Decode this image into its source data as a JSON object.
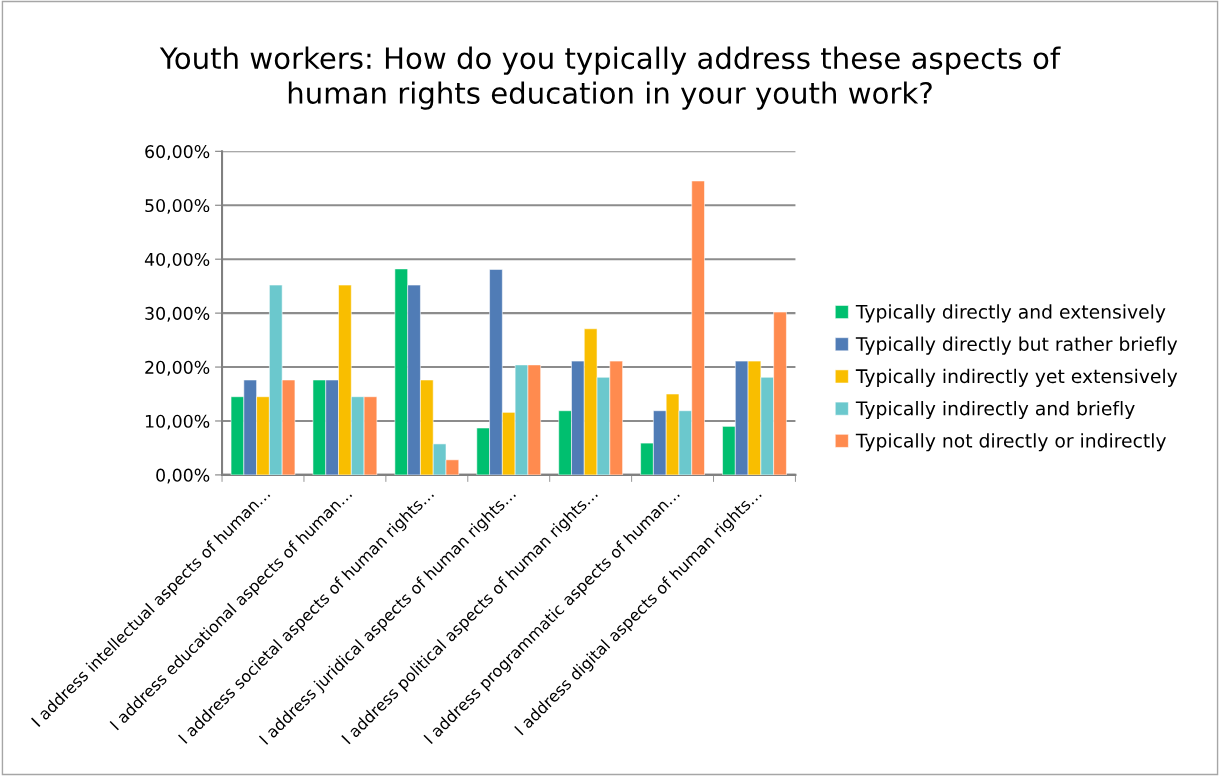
{
  "chart_data": {
    "type": "bar",
    "title": "Youth workers: How do you typically address these aspects of\nhuman rights education in your youth work?",
    "categories": [
      "I address intellectual aspects of human…",
      "I address educational aspects of human…",
      "I address societal aspects of human rights…",
      "I address juridical aspects of human rights…",
      "I address political aspects of human rights…",
      "I address programmatic aspects of human…",
      "I address digital aspects of human rights…"
    ],
    "series": [
      {
        "name": "Typically directly and extensively",
        "color": "#00bf6f",
        "values": [
          14.5,
          17.6,
          38.2,
          8.7,
          11.9,
          5.9,
          9.0
        ]
      },
      {
        "name": "Typically directly but rather briefly",
        "color": "#507cb6",
        "values": [
          17.6,
          17.6,
          35.2,
          38.1,
          21.1,
          11.9,
          21.1
        ]
      },
      {
        "name": "Typically indirectly yet extensively",
        "color": "#f9be00",
        "values": [
          14.5,
          35.2,
          17.6,
          11.6,
          27.1,
          15.0,
          21.1
        ]
      },
      {
        "name": "Typically indirectly and briefly",
        "color": "#6bc8cd",
        "values": [
          35.2,
          14.5,
          5.75,
          20.4,
          18.1,
          11.9,
          18.1
        ]
      },
      {
        "name": "Typically not directly or indirectly",
        "color": "#ff8b4f",
        "values": [
          17.6,
          14.5,
          2.8,
          20.4,
          21.1,
          54.5,
          30.2
        ]
      }
    ],
    "ylim": [
      0,
      60
    ],
    "yticks": [
      {
        "value": 0,
        "label": "0,00%"
      },
      {
        "value": 10,
        "label": "10,00%"
      },
      {
        "value": 20,
        "label": "20,00%"
      },
      {
        "value": 30,
        "label": "30,00%"
      },
      {
        "value": 40,
        "label": "40,00%"
      },
      {
        "value": 50,
        "label": "50,00%"
      },
      {
        "value": 60,
        "label": "60,00%"
      }
    ],
    "grid": "y",
    "legend": "right"
  }
}
